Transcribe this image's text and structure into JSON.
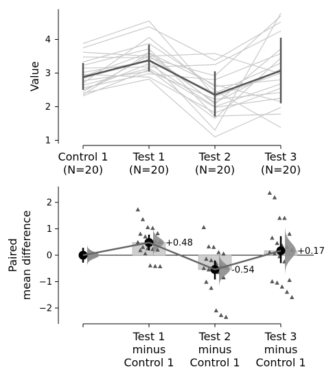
{
  "chart_data": [
    {
      "type": "line",
      "ylabel": "Value",
      "ylim": [
        0.9,
        4.9
      ],
      "yticks": [
        1,
        2,
        3,
        4
      ],
      "categories": [
        "Control 1\n(N=20)",
        "Test 1\n(N=20)",
        "Test 2\n(N=20)",
        "Test 3\n(N=20)"
      ],
      "paired_lines": [
        [
          3.88,
          4.55,
          2.3,
          3.0
        ],
        [
          3.75,
          4.38,
          3.38,
          4.52
        ],
        [
          3.62,
          3.5,
          3.58,
          2.98
        ],
        [
          3.48,
          3.45,
          2.92,
          4.7
        ],
        [
          3.33,
          3.88,
          2.6,
          2.8
        ],
        [
          3.23,
          3.72,
          1.72,
          1.78
        ],
        [
          3.15,
          3.18,
          3.25,
          4.25
        ],
        [
          3.02,
          3.35,
          2.4,
          3.3
        ],
        [
          2.96,
          2.88,
          1.82,
          2.55
        ],
        [
          2.9,
          3.6,
          2.08,
          3.72
        ],
        [
          2.84,
          3.4,
          1.3,
          4.78
        ],
        [
          2.77,
          3.05,
          2.22,
          2.42
        ],
        [
          2.7,
          4.06,
          2.48,
          1.38
        ],
        [
          2.64,
          3.14,
          1.98,
          2.25
        ],
        [
          2.56,
          2.98,
          2.8,
          3.58
        ],
        [
          2.5,
          3.28,
          2.0,
          2.68
        ],
        [
          2.45,
          3.52,
          2.12,
          3.12
        ],
        [
          2.4,
          2.82,
          1.1,
          1.98
        ],
        [
          2.36,
          3.6,
          2.65,
          2.15
        ],
        [
          2.32,
          3.1,
          1.65,
          3.45
        ]
      ],
      "summary": {
        "means": [
          2.88,
          3.38,
          2.35,
          3.07
        ],
        "sd_low": [
          2.5,
          3.05,
          1.7,
          2.1
        ],
        "sd_high": [
          3.3,
          3.85,
          3.05,
          4.05
        ]
      },
      "colors": {
        "paired": "#c8c8c8",
        "summary": "#555555"
      }
    },
    {
      "type": "scatter",
      "ylabel": "Paired\nmean difference",
      "ylim": [
        -2.6,
        2.6
      ],
      "yticks": [
        -2,
        -1,
        0,
        1,
        2
      ],
      "categories": [
        "",
        "Test 1\nminus\nControl 1",
        "Test 2\nminus\nControl 1",
        "Test 3\nminus\nControl 1"
      ],
      "reference": {
        "effect": 0.0,
        "ci": [
          -0.28,
          0.28
        ]
      },
      "groups": [
        {
          "effect": 0.48,
          "ci": [
            0.18,
            0.78
          ],
          "label": "+0.48",
          "points": [
            1.72,
            1.35,
            1.05,
            1.02,
            0.82,
            0.8,
            0.7,
            0.55,
            0.52,
            0.5,
            0.48,
            0.3,
            0.25,
            0.22,
            0.2,
            0.18,
            0.05,
            -0.4,
            -0.42,
            -0.43
          ]
        },
        {
          "effect": -0.54,
          "ci": [
            -0.92,
            -0.2
          ],
          "label": "-0.54",
          "points": [
            1.05,
            0.32,
            0.3,
            0.1,
            0.05,
            -0.15,
            -0.2,
            -0.32,
            -0.38,
            -0.45,
            -0.5,
            -0.55,
            -0.6,
            -0.65,
            -0.85,
            -1.02,
            -1.25,
            -2.1,
            -2.28,
            -2.35
          ]
        },
        {
          "effect": 0.17,
          "ci": [
            -0.3,
            0.72
          ],
          "label": "+0.17",
          "points": [
            2.35,
            2.18,
            1.4,
            1.4,
            0.8,
            0.65,
            0.45,
            0.35,
            0.3,
            0.2,
            0.1,
            0.05,
            -0.05,
            -0.25,
            -0.95,
            -1.0,
            -1.05,
            -1.2,
            -1.4,
            -1.6
          ]
        }
      ],
      "colors": {
        "points": "#555555",
        "bar": "#cfcfcf",
        "distribution": "#8c8c8c",
        "effect": "#000000",
        "trend": "#666666"
      }
    }
  ]
}
